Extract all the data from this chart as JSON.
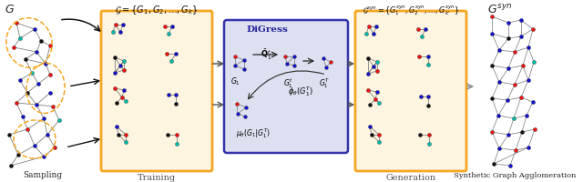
{
  "bg_color": "#ffffff",
  "node_colors": {
    "red": "#ee1111",
    "blue": "#1111cc",
    "black": "#111111",
    "cyan": "#00bbaa"
  },
  "box_orange_color": "#f5a623",
  "box_orange_fill": "#fef5e0",
  "box_blue_color": "#3333aa",
  "box_blue_fill": "#dde0f0",
  "labels": {
    "G": "$G$",
    "G_set": "$\\mathcal{G} = \\{G_1, G_2, \\ldots, G_k\\}$",
    "DiGress": "DiGress",
    "G_syn_set": "$\\mathcal{G}^{syn} = \\{G_1^{syn}, G_2^{syn}, \\ldots, G_{k'}^{syn}\\}$",
    "G_syn": "$G^{syn}$",
    "Sampling": "Sampling",
    "Training": "Training",
    "Generation": "Generation",
    "SGA": "Synthetic Graph Agglomeration",
    "Qt": "$\\bar{\\mathbf{Q}}_1^t$",
    "G1t": "$G_1^t$",
    "G1N": "$G_1^T$",
    "G1_label": "$G_1$",
    "phi": "$\\phi_\\theta(G_1^T)$",
    "mu": "$\\mu_\\theta(G_1|G_1^T)$"
  }
}
